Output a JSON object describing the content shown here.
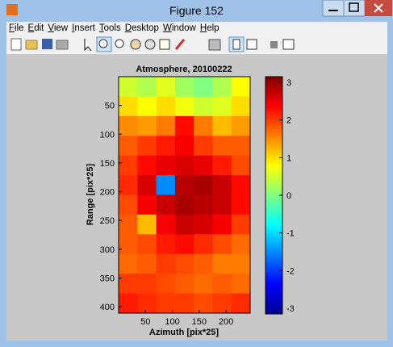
{
  "window": {
    "title": "Figure 152",
    "menu": [
      "File",
      "Edit",
      "View",
      "Insert",
      "Tools",
      "Desktop",
      "Window",
      "Help"
    ]
  },
  "chart_data": {
    "type": "heatmap",
    "title": "Atmosphere, 20100222",
    "x_label": "Azimuth [pix*25]",
    "y_label": "Range [pix*25]",
    "xlim": [
      0,
      245
    ],
    "ylim": [
      0,
      411
    ],
    "xticks": [
      50,
      100,
      150,
      200
    ],
    "yticks": [
      50,
      100,
      150,
      200,
      250,
      300,
      350,
      400
    ],
    "colormap": "jet",
    "clim": [
      -3.15,
      3.15
    ],
    "cticks": [
      -3,
      -2,
      -1,
      0,
      1,
      2,
      3
    ],
    "values": [
      [
        0.5,
        0.3,
        0.6,
        0.2,
        0.0,
        0.3,
        0.8
      ],
      [
        1.0,
        0.8,
        1.0,
        0.7,
        0.5,
        0.6,
        1.0
      ],
      [
        1.5,
        1.4,
        1.6,
        2.3,
        1.6,
        1.2,
        1.4
      ],
      [
        1.8,
        2.0,
        2.2,
        2.4,
        2.0,
        1.8,
        1.8
      ],
      [
        2.0,
        2.3,
        2.5,
        2.6,
        2.5,
        2.2,
        1.9
      ],
      [
        2.1,
        2.6,
        -1.5,
        2.8,
        2.9,
        2.7,
        2.3
      ],
      [
        1.9,
        2.4,
        2.7,
        2.9,
        2.8,
        2.7,
        2.3
      ],
      [
        1.8,
        1.2,
        2.4,
        2.7,
        2.6,
        2.4,
        2.0
      ],
      [
        1.8,
        1.9,
        2.2,
        2.3,
        2.1,
        1.9,
        1.7
      ],
      [
        1.7,
        1.8,
        2.0,
        1.9,
        1.8,
        1.6,
        1.6
      ],
      [
        2.0,
        2.0,
        1.9,
        1.8,
        1.7,
        1.8,
        1.7
      ],
      [
        2.2,
        2.1,
        2.0,
        2.0,
        1.9,
        2.0,
        2.1
      ]
    ]
  }
}
